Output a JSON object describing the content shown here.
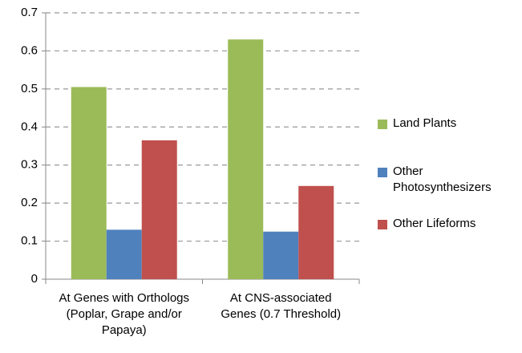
{
  "chart_data": {
    "type": "bar",
    "categories": [
      "At Genes with Orthologs (Poplar, Grape and/or Papaya)",
      "At CNS-associated Genes (0.7 Threshold)"
    ],
    "series": [
      {
        "name": "Land Plants",
        "color": "#9bbb59",
        "values": [
          0.505,
          0.63
        ]
      },
      {
        "name": "Other Photosynthesizers",
        "color": "#4f81bd",
        "values": [
          0.13,
          0.125
        ]
      },
      {
        "name": "Other Lifeforms",
        "color": "#c0504d",
        "values": [
          0.365,
          0.245
        ]
      }
    ],
    "ylim": [
      0,
      0.7
    ],
    "yticks": [
      0,
      0.1,
      0.2,
      0.3,
      0.4,
      0.5,
      0.6,
      0.7
    ],
    "grid": true,
    "legend": "right"
  }
}
